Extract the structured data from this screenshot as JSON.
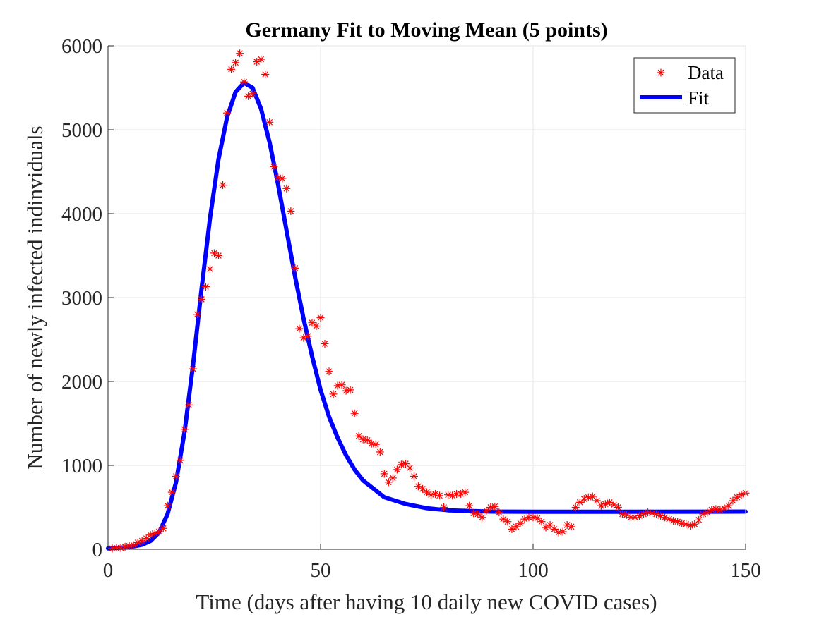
{
  "chart_data": {
    "type": "scatter",
    "title": "Germany Fit to Moving Mean (5 points)",
    "xlabel": "Time (days after having 10 daily new COVID cases)",
    "ylabel": "Number of newly infected indinviduals",
    "xlim": [
      0,
      150
    ],
    "ylim": [
      0,
      6000
    ],
    "xticks": [
      0,
      50,
      100,
      150
    ],
    "yticks": [
      0,
      1000,
      2000,
      3000,
      4000,
      5000,
      6000
    ],
    "grid": true,
    "legend_position": "top-right",
    "colors": {
      "data": "#ff0000",
      "fit": "#0000ff",
      "grid": "#e6e6e6",
      "axis": "#262626"
    },
    "series": [
      {
        "name": "Data",
        "marker": "asterisk",
        "points": [
          [
            1,
            10
          ],
          [
            2,
            20
          ],
          [
            3,
            15
          ],
          [
            4,
            30
          ],
          [
            5,
            40
          ],
          [
            6,
            50
          ],
          [
            7,
            80
          ],
          [
            8,
            100
          ],
          [
            9,
            130
          ],
          [
            10,
            170
          ],
          [
            11,
            190
          ],
          [
            12,
            210
          ],
          [
            13,
            250
          ],
          [
            14,
            520
          ],
          [
            15,
            680
          ],
          [
            16,
            870
          ],
          [
            17,
            1060
          ],
          [
            18,
            1430
          ],
          [
            19,
            1720
          ],
          [
            20,
            2150
          ],
          [
            21,
            2800
          ],
          [
            22,
            2980
          ],
          [
            23,
            3130
          ],
          [
            24,
            3340
          ],
          [
            25,
            3530
          ],
          [
            26,
            3500
          ],
          [
            27,
            4340
          ],
          [
            28,
            5200
          ],
          [
            29,
            5720
          ],
          [
            30,
            5800
          ],
          [
            31,
            5910
          ],
          [
            32,
            5570
          ],
          [
            33,
            5400
          ],
          [
            34,
            5430
          ],
          [
            35,
            5810
          ],
          [
            36,
            5840
          ],
          [
            37,
            5660
          ],
          [
            38,
            5090
          ],
          [
            39,
            4560
          ],
          [
            40,
            4430
          ],
          [
            41,
            4420
          ],
          [
            42,
            4300
          ],
          [
            43,
            4030
          ],
          [
            44,
            3350
          ],
          [
            45,
            2630
          ],
          [
            46,
            2520
          ],
          [
            47,
            2540
          ],
          [
            48,
            2700
          ],
          [
            49,
            2660
          ],
          [
            50,
            2760
          ],
          [
            51,
            2450
          ],
          [
            52,
            2120
          ],
          [
            53,
            1850
          ],
          [
            54,
            1950
          ],
          [
            55,
            1960
          ],
          [
            56,
            1890
          ],
          [
            57,
            1900
          ],
          [
            58,
            1620
          ],
          [
            59,
            1350
          ],
          [
            60,
            1310
          ],
          [
            61,
            1300
          ],
          [
            62,
            1260
          ],
          [
            63,
            1250
          ],
          [
            64,
            1160
          ],
          [
            65,
            900
          ],
          [
            66,
            800
          ],
          [
            67,
            850
          ],
          [
            68,
            950
          ],
          [
            69,
            1010
          ],
          [
            70,
            1020
          ],
          [
            71,
            970
          ],
          [
            72,
            870
          ],
          [
            73,
            750
          ],
          [
            74,
            720
          ],
          [
            75,
            680
          ],
          [
            76,
            650
          ],
          [
            77,
            660
          ],
          [
            78,
            640
          ],
          [
            79,
            500
          ],
          [
            80,
            650
          ],
          [
            81,
            640
          ],
          [
            82,
            660
          ],
          [
            83,
            660
          ],
          [
            84,
            680
          ],
          [
            85,
            520
          ],
          [
            86,
            430
          ],
          [
            87,
            420
          ],
          [
            88,
            380
          ],
          [
            89,
            460
          ],
          [
            90,
            500
          ],
          [
            91,
            510
          ],
          [
            92,
            440
          ],
          [
            93,
            360
          ],
          [
            94,
            330
          ],
          [
            95,
            240
          ],
          [
            96,
            270
          ],
          [
            97,
            310
          ],
          [
            98,
            360
          ],
          [
            99,
            380
          ],
          [
            100,
            380
          ],
          [
            101,
            370
          ],
          [
            102,
            330
          ],
          [
            103,
            260
          ],
          [
            104,
            290
          ],
          [
            105,
            240
          ],
          [
            106,
            200
          ],
          [
            107,
            210
          ],
          [
            108,
            290
          ],
          [
            109,
            270
          ],
          [
            110,
            500
          ],
          [
            111,
            560
          ],
          [
            112,
            600
          ],
          [
            113,
            620
          ],
          [
            114,
            630
          ],
          [
            115,
            580
          ],
          [
            116,
            520
          ],
          [
            117,
            540
          ],
          [
            118,
            560
          ],
          [
            119,
            530
          ],
          [
            120,
            500
          ],
          [
            121,
            420
          ],
          [
            122,
            410
          ],
          [
            123,
            380
          ],
          [
            124,
            380
          ],
          [
            125,
            400
          ],
          [
            126,
            420
          ],
          [
            127,
            440
          ],
          [
            128,
            430
          ],
          [
            129,
            420
          ],
          [
            130,
            400
          ],
          [
            131,
            380
          ],
          [
            132,
            360
          ],
          [
            133,
            340
          ],
          [
            134,
            330
          ],
          [
            135,
            310
          ],
          [
            136,
            300
          ],
          [
            137,
            280
          ],
          [
            138,
            300
          ],
          [
            139,
            350
          ],
          [
            140,
            420
          ],
          [
            141,
            440
          ],
          [
            142,
            470
          ],
          [
            143,
            480
          ],
          [
            144,
            470
          ],
          [
            145,
            490
          ],
          [
            146,
            520
          ],
          [
            147,
            580
          ],
          [
            148,
            620
          ],
          [
            149,
            650
          ],
          [
            150,
            670
          ]
        ]
      },
      {
        "name": "Fit",
        "line_width": 6,
        "points": [
          [
            0,
            10
          ],
          [
            5,
            25
          ],
          [
            8,
            55
          ],
          [
            10,
            100
          ],
          [
            12,
            200
          ],
          [
            14,
            420
          ],
          [
            16,
            800
          ],
          [
            18,
            1400
          ],
          [
            20,
            2200
          ],
          [
            22,
            3100
          ],
          [
            24,
            3950
          ],
          [
            26,
            4650
          ],
          [
            28,
            5150
          ],
          [
            30,
            5450
          ],
          [
            32,
            5560
          ],
          [
            34,
            5500
          ],
          [
            36,
            5250
          ],
          [
            38,
            4850
          ],
          [
            40,
            4350
          ],
          [
            42,
            3800
          ],
          [
            44,
            3250
          ],
          [
            46,
            2750
          ],
          [
            48,
            2300
          ],
          [
            50,
            1900
          ],
          [
            52,
            1580
          ],
          [
            54,
            1330
          ],
          [
            56,
            1120
          ],
          [
            58,
            950
          ],
          [
            60,
            820
          ],
          [
            65,
            620
          ],
          [
            70,
            540
          ],
          [
            75,
            490
          ],
          [
            80,
            465
          ],
          [
            90,
            450
          ],
          [
            100,
            448
          ],
          [
            120,
            447
          ],
          [
            150,
            450
          ]
        ]
      }
    ]
  }
}
